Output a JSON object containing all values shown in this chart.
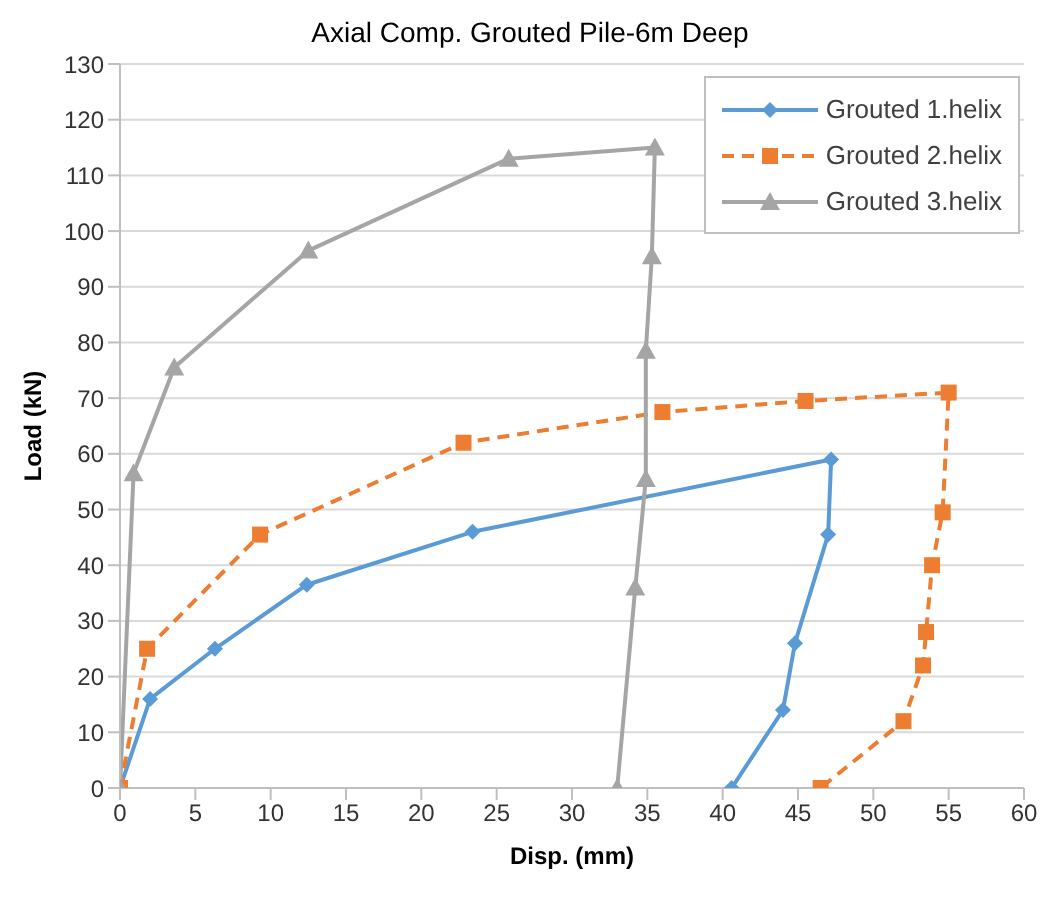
{
  "chart_data": {
    "type": "line",
    "title": "Axial Comp. Grouted Pile-6m Deep",
    "xlabel": "Disp. (mm)",
    "ylabel": "Load (kN)",
    "xlim": [
      0,
      60
    ],
    "xticks": [
      0,
      5,
      10,
      15,
      20,
      25,
      30,
      35,
      40,
      45,
      50,
      55,
      60
    ],
    "ylim": [
      0,
      130
    ],
    "yticks": [
      0,
      10,
      20,
      30,
      40,
      50,
      60,
      70,
      80,
      90,
      100,
      110,
      120,
      130
    ],
    "grid": "y",
    "legend": "top right",
    "series": [
      {
        "name": "Grouted 1.helix",
        "color": "#5b9bd5",
        "marker": "diamond",
        "line_style": "solid",
        "x": [
          0,
          2,
          6.3,
          12.4,
          23.4,
          47.2,
          47,
          44.8,
          44,
          40.6
        ],
        "values": [
          0,
          16,
          25,
          36.5,
          46,
          59,
          45.5,
          26,
          14,
          0
        ]
      },
      {
        "name": "Grouted 2.helix",
        "color": "#ed7d31",
        "marker": "square",
        "line_style": "dashed",
        "x": [
          0,
          1.8,
          9.3,
          22.8,
          36,
          45.5,
          55,
          54.6,
          53.9,
          53.5,
          53.3,
          52,
          46.5
        ],
        "values": [
          0,
          25,
          45.5,
          62,
          67.5,
          69.5,
          71,
          49.5,
          40,
          28,
          22,
          12,
          0
        ]
      },
      {
        "name": "Grouted 3.helix",
        "color": "#a5a5a5",
        "marker": "triangle",
        "line_style": "solid",
        "x": [
          0,
          0.9,
          3.6,
          12.5,
          25.8,
          35.5,
          35.3,
          34.9,
          34.9,
          34.2,
          33
        ],
        "values": [
          0,
          56.5,
          75.5,
          96.5,
          113,
          115,
          95.5,
          78.5,
          55.5,
          36,
          0
        ]
      }
    ]
  }
}
